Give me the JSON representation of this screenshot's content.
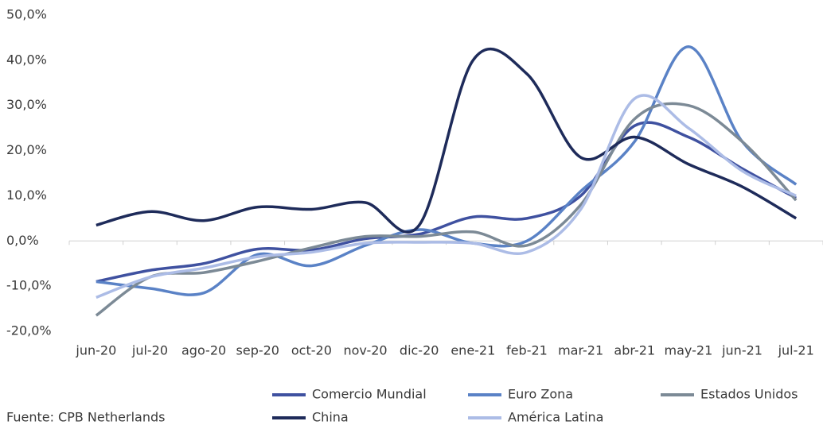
{
  "chart_data": {
    "type": "line",
    "categories": [
      "jun-20",
      "jul-20",
      "ago-20",
      "sep-20",
      "oct-20",
      "nov-20",
      "dic-20",
      "ene-21",
      "feb-21",
      "mar-21",
      "abr-21",
      "may-21",
      "jun-21",
      "jul-21"
    ],
    "series": [
      {
        "name": "Comercio Mundial",
        "color": "#3f51a0",
        "values": [
          -9,
          -6.5,
          -5,
          -1.8,
          -2,
          0.5,
          1.5,
          5.3,
          5,
          10,
          25.5,
          23,
          16,
          9.5
        ]
      },
      {
        "name": "Euro Zona",
        "color": "#5a82c6",
        "values": [
          -9,
          -10.5,
          -11.5,
          -3,
          -5.5,
          -1,
          2.5,
          -0.5,
          0,
          11,
          22,
          43,
          22,
          12.5
        ]
      },
      {
        "name": "Estados Unidos",
        "color": "#7c8a96",
        "values": [
          -16.5,
          -8,
          -7,
          -4.5,
          -1.5,
          1,
          1,
          2,
          -1,
          8,
          27,
          30,
          22,
          9
        ]
      },
      {
        "name": "China",
        "color": "#1e2b5a",
        "values": [
          3.5,
          6.5,
          4.5,
          7.5,
          7,
          8.5,
          3.5,
          40,
          37,
          18.5,
          23,
          17,
          12,
          5
        ]
      },
      {
        "name": "América Latina",
        "color": "#acbce6",
        "values": [
          -12.5,
          -8,
          -6,
          -3.5,
          -2.5,
          -0.5,
          -0.3,
          -0.5,
          -2.5,
          7,
          31.5,
          25,
          15.5,
          10
        ]
      }
    ],
    "ylim": [
      -20,
      50
    ],
    "yticks": [
      {
        "value": -20,
        "label": "-20,0%"
      },
      {
        "value": -10,
        "label": "-10,0%"
      },
      {
        "value": 0,
        "label": "0,0%"
      },
      {
        "value": 10,
        "label": "10,0%"
      },
      {
        "value": 20,
        "label": "20,0%"
      },
      {
        "value": 30,
        "label": "30,0%"
      },
      {
        "value": 40,
        "label": "40,0%"
      },
      {
        "value": 50,
        "label": "50,0%"
      }
    ],
    "source": "Fuente: CPB Netherlands"
  }
}
